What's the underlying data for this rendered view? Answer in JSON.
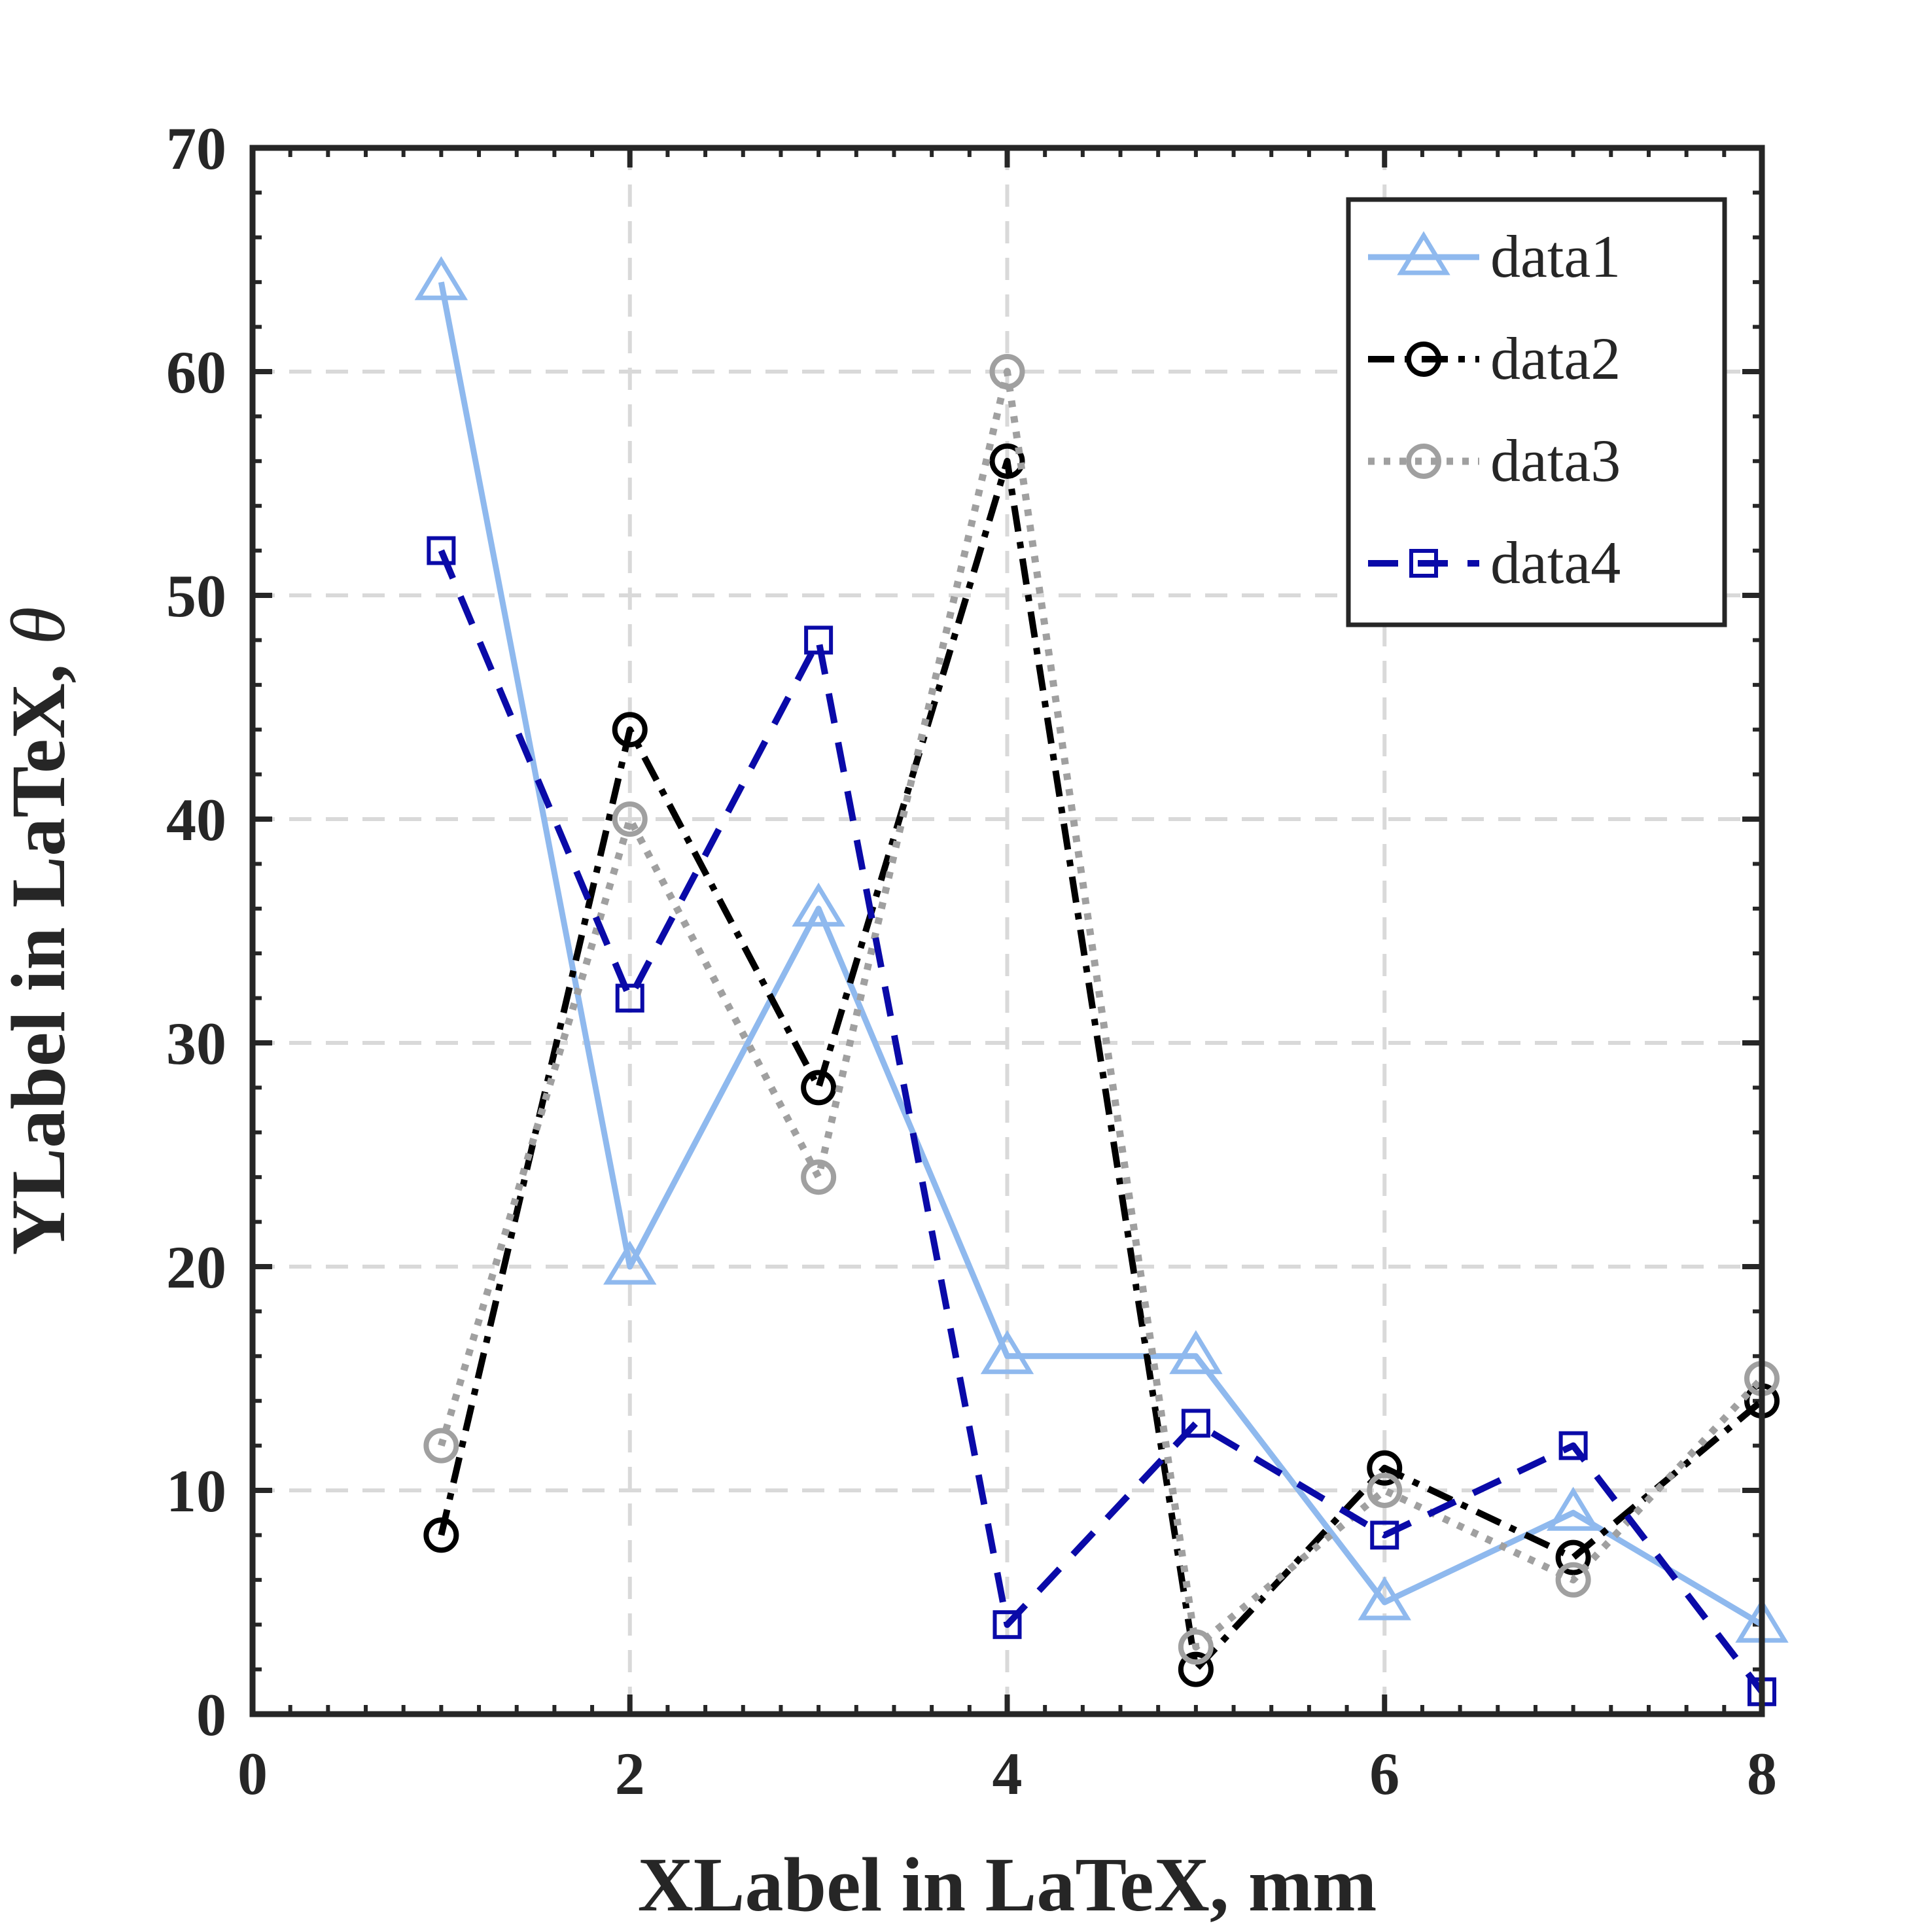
{
  "chart_data": {
    "type": "line",
    "xlabel": "XLabel in LaTeX, mm",
    "ylabel_main": "YLabel in LaTeX, ",
    "ylabel_symbol": "θ",
    "xlim": [
      0,
      8
    ],
    "ylim": [
      0,
      70
    ],
    "xticks": [
      0,
      2,
      4,
      6,
      8
    ],
    "yticks": [
      0,
      10,
      20,
      30,
      40,
      50,
      60,
      70
    ],
    "grid": true,
    "legend_position": "top-right",
    "x": [
      1,
      2,
      3,
      4,
      5,
      6,
      7,
      8
    ],
    "series": [
      {
        "name": "data1",
        "values": [
          64,
          20,
          36,
          16,
          16,
          5,
          9,
          4
        ],
        "color": "#8fb9ee",
        "line": "solid",
        "marker": "triangle"
      },
      {
        "name": "data2",
        "values": [
          8,
          44,
          28,
          56,
          2,
          11,
          7,
          14
        ],
        "color": "#000000",
        "line": "dashdot",
        "marker": "circle"
      },
      {
        "name": "data3",
        "values": [
          12,
          40,
          24,
          60,
          3,
          10,
          6,
          15
        ],
        "color": "#a0a0a0",
        "line": "dotted",
        "marker": "circle"
      },
      {
        "name": "data4",
        "values": [
          52,
          32,
          48,
          4,
          13,
          8,
          12,
          1
        ],
        "color": "#0a0aa8",
        "line": "dashed",
        "marker": "square"
      }
    ]
  }
}
